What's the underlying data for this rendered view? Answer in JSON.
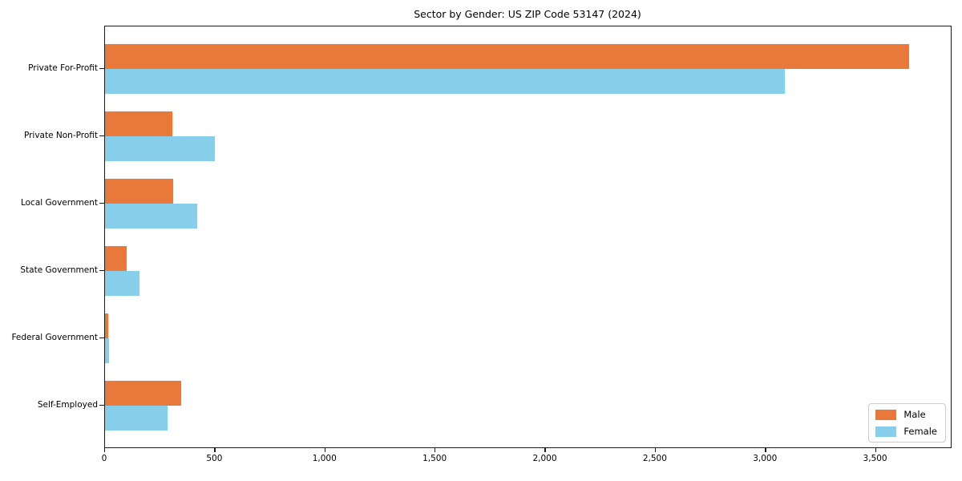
{
  "chart_data": {
    "type": "bar",
    "orientation": "horizontal",
    "title": "Sector by Gender: US ZIP Code 53147 (2024)",
    "categories": [
      "Private For-Profit",
      "Private Non-Profit",
      "Local Government",
      "State Government",
      "Federal Government",
      "Self-Employed"
    ],
    "series": [
      {
        "name": "Male",
        "color": "#e8793a",
        "values": [
          3650,
          305,
          310,
          100,
          15,
          345
        ]
      },
      {
        "name": "Female",
        "color": "#87ceeb",
        "values": [
          3085,
          500,
          420,
          155,
          20,
          285
        ]
      }
    ],
    "xlim": [
      0,
      3840
    ],
    "xticks": [
      0,
      500,
      1000,
      1500,
      2000,
      2500,
      3000,
      3500
    ],
    "xtick_labels": [
      "0",
      "500",
      "1,000",
      "1,500",
      "2,000",
      "2,500",
      "3,000",
      "3,500"
    ],
    "xlabel": "",
    "ylabel": "",
    "grid": false,
    "legend": {
      "position": "lower-right",
      "entries": [
        "Male",
        "Female"
      ]
    },
    "colors": {
      "background": "#ffffff",
      "spine": "#1a1a1a"
    }
  }
}
